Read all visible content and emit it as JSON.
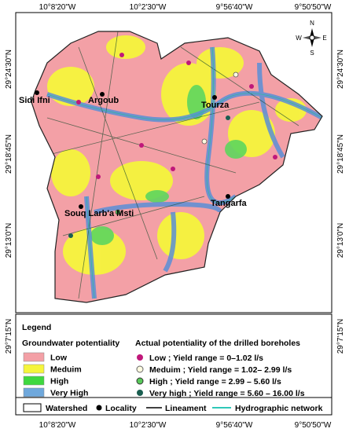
{
  "map": {
    "top_axis": [
      "10°8'20\"W",
      "10°2'30\"W",
      "9°56'40\"W",
      "9°50'50\"W"
    ],
    "bottom_axis": [
      "10°8'20\"W",
      "10°2'30\"W",
      "9°56'40\"W",
      "9°50'50\"W"
    ],
    "left_axis": [
      "29°24'30\"N",
      "29°18'45\"N",
      "29°13'0\"N",
      "29°7'15\"N"
    ],
    "right_axis": [
      "29°24'30\"N",
      "29°18'45\"N",
      "29°13'0\"N",
      "29°7'15\"N"
    ],
    "compass": {
      "n": "N",
      "e": "E",
      "s": "S",
      "w": "W"
    },
    "localities": [
      "Sidi Ifni",
      "Argoub",
      "Tourza",
      "Tangarfa",
      "Souq Larb'a Msti"
    ]
  },
  "legend": {
    "title": "Legend",
    "groundwater": {
      "title": "Groundwater potentiality",
      "classes": [
        "Low",
        "Meduim",
        "High",
        "Very High"
      ]
    },
    "boreholes": {
      "title": "Actual potentiality of the drilled boreholes",
      "classes": [
        "Low ; Yield range = 0–1.02 l/s",
        "Meduim ; Yield range = 1.02– 2.99 l/s",
        "High ; Yield range = 2.99 – 5.60 l/s",
        "Very high ; Yield range = 5.60 – 16.00 l/s"
      ]
    },
    "symbols": [
      "Watershed",
      "Locality",
      "Lineament",
      "Hydrographic network"
    ]
  }
}
